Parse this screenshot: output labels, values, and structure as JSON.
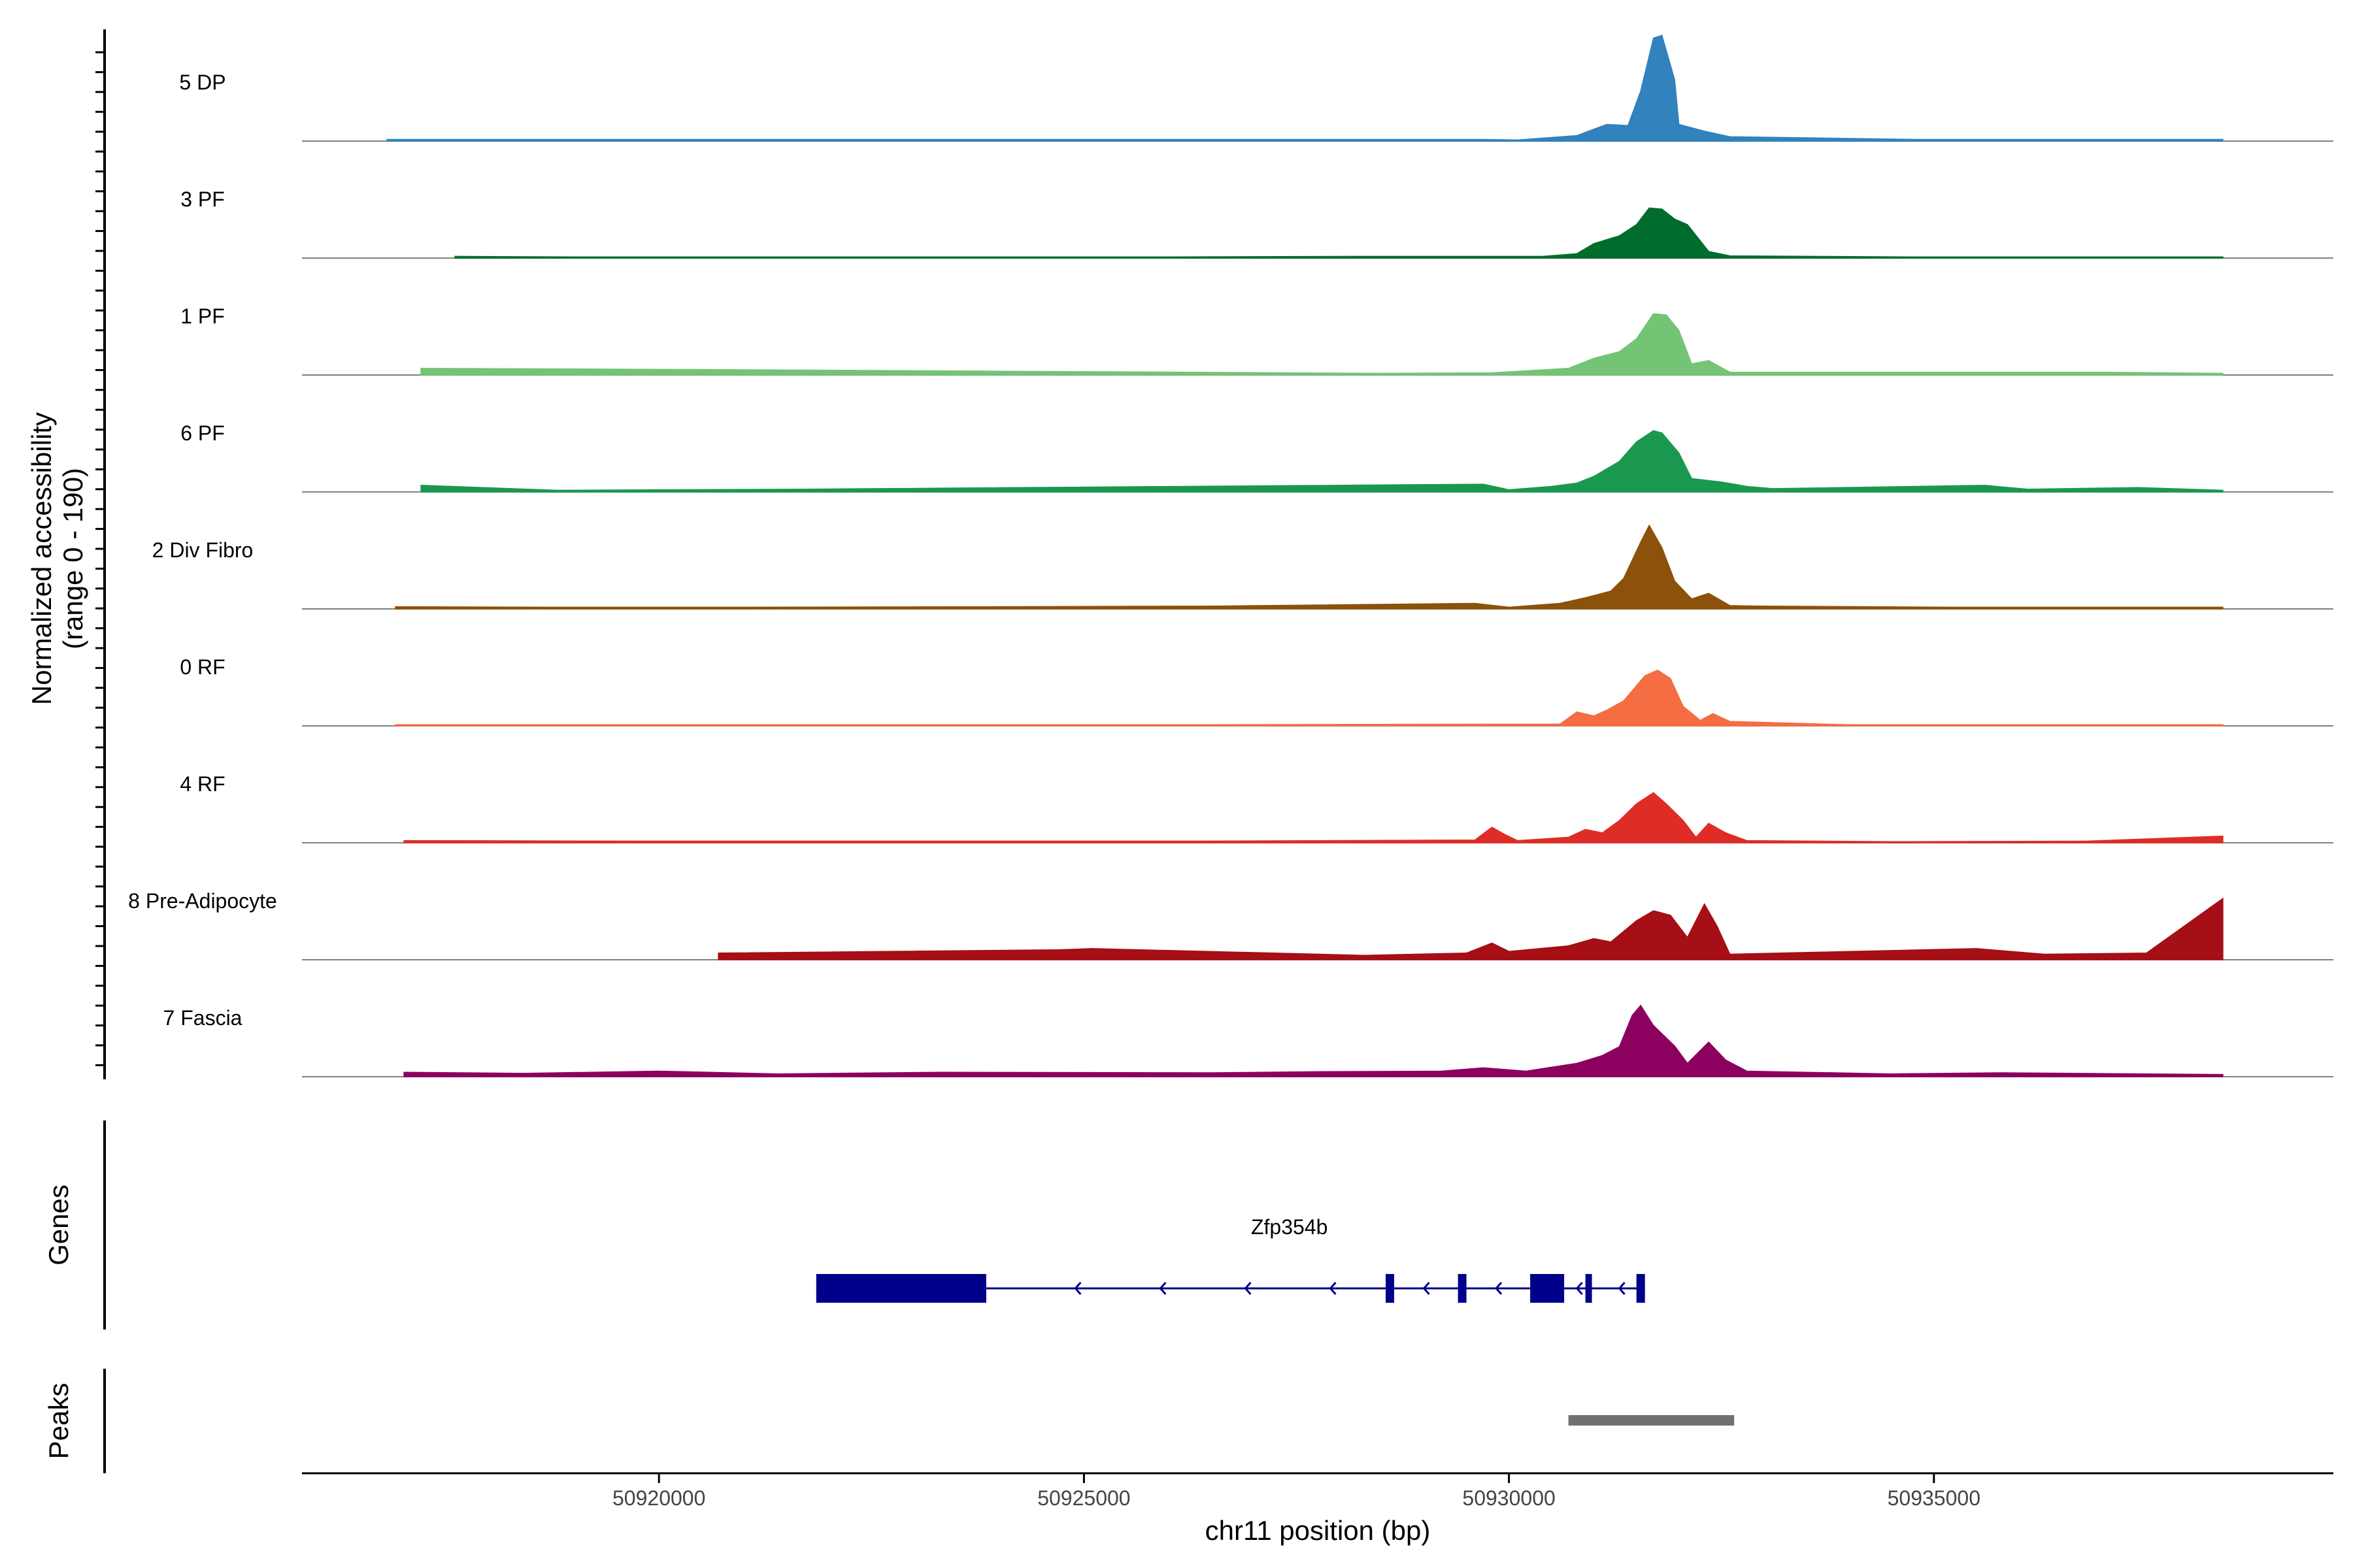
{
  "chart_data": {
    "type": "area",
    "title": "",
    "ylabel_line1": "Normalized accessibility",
    "ylabel_line2": "(range 0 - 190)",
    "xlabel": "chr11 position (bp)",
    "genes_label": "Genes",
    "peaks_label": "Peaks",
    "xlim": [
      50915800,
      50939700
    ],
    "ylim": [
      0,
      190
    ],
    "x_ticks": [
      {
        "value": 50920000,
        "label": "50920000"
      },
      {
        "value": 50925000,
        "label": "50925000"
      },
      {
        "value": 50930000,
        "label": "50930000"
      },
      {
        "value": 50935000,
        "label": "50935000"
      }
    ],
    "tracks": [
      {
        "name": "5 DP",
        "color": "#3182bd",
        "points": [
          [
            50916800,
            3
          ],
          [
            50918600,
            3
          ],
          [
            50922400,
            3
          ],
          [
            50925900,
            3
          ],
          [
            50929700,
            3
          ],
          [
            50930100,
            2
          ],
          [
            50930800,
            10
          ],
          [
            50931150,
            30
          ],
          [
            50931400,
            28
          ],
          [
            50931550,
            90
          ],
          [
            50931700,
            185
          ],
          [
            50931800,
            190
          ],
          [
            50931950,
            110
          ],
          [
            50932000,
            30
          ],
          [
            50932300,
            18
          ],
          [
            50932600,
            8
          ],
          [
            50934800,
            3
          ],
          [
            50936500,
            3
          ],
          [
            50938400,
            3
          ]
        ]
      },
      {
        "name": "3 PF",
        "color": "#006d2c",
        "points": [
          [
            50917600,
            3
          ],
          [
            50919000,
            2
          ],
          [
            50921500,
            2
          ],
          [
            50926000,
            2
          ],
          [
            50928200,
            3
          ],
          [
            50929800,
            3
          ],
          [
            50930400,
            3
          ],
          [
            50930800,
            8
          ],
          [
            50931000,
            26
          ],
          [
            50931300,
            40
          ],
          [
            50931500,
            60
          ],
          [
            50931650,
            90
          ],
          [
            50931800,
            88
          ],
          [
            50931950,
            70
          ],
          [
            50932100,
            60
          ],
          [
            50932350,
            12
          ],
          [
            50932600,
            4
          ],
          [
            50934800,
            2
          ],
          [
            50937500,
            2
          ],
          [
            50938400,
            2
          ]
        ]
      },
      {
        "name": "1 PF",
        "color": "#74c476",
        "points": [
          [
            50917200,
            12
          ],
          [
            50920400,
            10
          ],
          [
            50928500,
            3
          ],
          [
            50929800,
            4
          ],
          [
            50930700,
            12
          ],
          [
            50931000,
            30
          ],
          [
            50931300,
            42
          ],
          [
            50931500,
            65
          ],
          [
            50931700,
            110
          ],
          [
            50931850,
            108
          ],
          [
            50932000,
            80
          ],
          [
            50932150,
            20
          ],
          [
            50932350,
            26
          ],
          [
            50932600,
            5
          ],
          [
            50935900,
            5
          ],
          [
            50937000,
            5
          ],
          [
            50938400,
            3
          ]
        ]
      },
      {
        "name": "6 PF",
        "color": "#1a9850",
        "points": [
          [
            50917200,
            12
          ],
          [
            50918800,
            3
          ],
          [
            50921700,
            5
          ],
          [
            50929700,
            14
          ],
          [
            50930000,
            4
          ],
          [
            50930500,
            10
          ],
          [
            50930800,
            16
          ],
          [
            50931000,
            28
          ],
          [
            50931300,
            55
          ],
          [
            50931500,
            90
          ],
          [
            50931700,
            110
          ],
          [
            50931800,
            106
          ],
          [
            50932000,
            70
          ],
          [
            50932150,
            24
          ],
          [
            50932500,
            18
          ],
          [
            50932800,
            10
          ],
          [
            50933100,
            6
          ],
          [
            50935600,
            12
          ],
          [
            50936100,
            5
          ],
          [
            50937400,
            8
          ],
          [
            50938400,
            3
          ]
        ]
      },
      {
        "name": "2 Div Fibro",
        "color": "#8c510a",
        "points": [
          [
            50916900,
            4
          ],
          [
            50918700,
            3
          ],
          [
            50921000,
            3
          ],
          [
            50924000,
            4
          ],
          [
            50926500,
            5
          ],
          [
            50929600,
            10
          ],
          [
            50930000,
            3
          ],
          [
            50930600,
            10
          ],
          [
            50930900,
            20
          ],
          [
            50931200,
            32
          ],
          [
            50931350,
            55
          ],
          [
            50931550,
            120
          ],
          [
            50931650,
            150
          ],
          [
            50931800,
            110
          ],
          [
            50931950,
            50
          ],
          [
            50932150,
            18
          ],
          [
            50932350,
            28
          ],
          [
            50932600,
            6
          ],
          [
            50933000,
            5
          ],
          [
            50935200,
            3
          ],
          [
            50937000,
            3
          ],
          [
            50938400,
            3
          ]
        ]
      },
      {
        "name": "0 RF",
        "color": "#f46d43",
        "points": [
          [
            50916900,
            2
          ],
          [
            50919500,
            2
          ],
          [
            50923000,
            2
          ],
          [
            50926000,
            2
          ],
          [
            50929700,
            3
          ],
          [
            50930600,
            3
          ],
          [
            50930800,
            25
          ],
          [
            50931000,
            18
          ],
          [
            50931150,
            28
          ],
          [
            50931350,
            45
          ],
          [
            50931600,
            90
          ],
          [
            50931750,
            100
          ],
          [
            50931900,
            85
          ],
          [
            50932050,
            35
          ],
          [
            50932250,
            10
          ],
          [
            50932400,
            22
          ],
          [
            50932600,
            8
          ],
          [
            50934000,
            2
          ],
          [
            50936500,
            2
          ],
          [
            50938400,
            2
          ]
        ]
      },
      {
        "name": "4 RF",
        "color": "#de2d26",
        "points": [
          [
            50917000,
            4
          ],
          [
            50919800,
            3
          ],
          [
            50922000,
            3
          ],
          [
            50926300,
            3
          ],
          [
            50929600,
            5
          ],
          [
            50929800,
            28
          ],
          [
            50929950,
            15
          ],
          [
            50930100,
            4
          ],
          [
            50930700,
            10
          ],
          [
            50930900,
            24
          ],
          [
            50931100,
            18
          ],
          [
            50931300,
            40
          ],
          [
            50931500,
            70
          ],
          [
            50931700,
            90
          ],
          [
            50931850,
            70
          ],
          [
            50932050,
            40
          ],
          [
            50932200,
            10
          ],
          [
            50932350,
            35
          ],
          [
            50932550,
            18
          ],
          [
            50932800,
            4
          ],
          [
            50934500,
            2
          ],
          [
            50936800,
            3
          ],
          [
            50938400,
            12
          ]
        ]
      },
      {
        "name": "8 Pre-Adipocyte",
        "color": "#a50f15",
        "points": [
          [
            50920700,
            12
          ],
          [
            50924700,
            18
          ],
          [
            50925100,
            20
          ],
          [
            50928300,
            8
          ],
          [
            50929500,
            12
          ],
          [
            50929800,
            30
          ],
          [
            50930000,
            15
          ],
          [
            50930700,
            25
          ],
          [
            50931000,
            38
          ],
          [
            50931200,
            32
          ],
          [
            50931500,
            70
          ],
          [
            50931700,
            88
          ],
          [
            50931900,
            80
          ],
          [
            50932100,
            40
          ],
          [
            50932300,
            100
          ],
          [
            50932450,
            60
          ],
          [
            50932600,
            10
          ],
          [
            50935500,
            20
          ],
          [
            50936300,
            10
          ],
          [
            50937500,
            12
          ],
          [
            50938400,
            110
          ]
        ]
      },
      {
        "name": "7 Fascia",
        "color": "#8c0060",
        "points": [
          [
            50917000,
            8
          ],
          [
            50918400,
            6
          ],
          [
            50920000,
            10
          ],
          [
            50921400,
            5
          ],
          [
            50923300,
            8
          ],
          [
            50926500,
            7
          ],
          [
            50927800,
            9
          ],
          [
            50929200,
            10
          ],
          [
            50929700,
            16
          ],
          [
            50930200,
            10
          ],
          [
            50930800,
            24
          ],
          [
            50931100,
            38
          ],
          [
            50931300,
            54
          ],
          [
            50931450,
            110
          ],
          [
            50931550,
            128
          ],
          [
            50931700,
            92
          ],
          [
            50931950,
            55
          ],
          [
            50932100,
            24
          ],
          [
            50932350,
            62
          ],
          [
            50932550,
            30
          ],
          [
            50932800,
            10
          ],
          [
            50934500,
            5
          ],
          [
            50935800,
            7
          ],
          [
            50937500,
            5
          ],
          [
            50938400,
            4
          ]
        ]
      }
    ],
    "genes": [
      {
        "name": "Zfp354b",
        "strand": "-",
        "start": 50921850,
        "end": 50931600,
        "exons": [
          [
            50921850,
            50923850
          ],
          [
            50928550,
            50928650
          ],
          [
            50929400,
            50929500
          ],
          [
            50930250,
            50930650
          ],
          [
            50930900,
            50930970
          ],
          [
            50931500,
            50931600
          ]
        ],
        "arrows": [
          50924900,
          50925900,
          50926900,
          50927900,
          50929000,
          50929850,
          50930800,
          50931300
        ]
      }
    ],
    "peaks": [
      {
        "start": 50930700,
        "end": 50932650
      }
    ]
  },
  "colors": {
    "gene": "#00008b",
    "peak": "#707070",
    "baseline": "#808080",
    "axis": "#000000"
  }
}
